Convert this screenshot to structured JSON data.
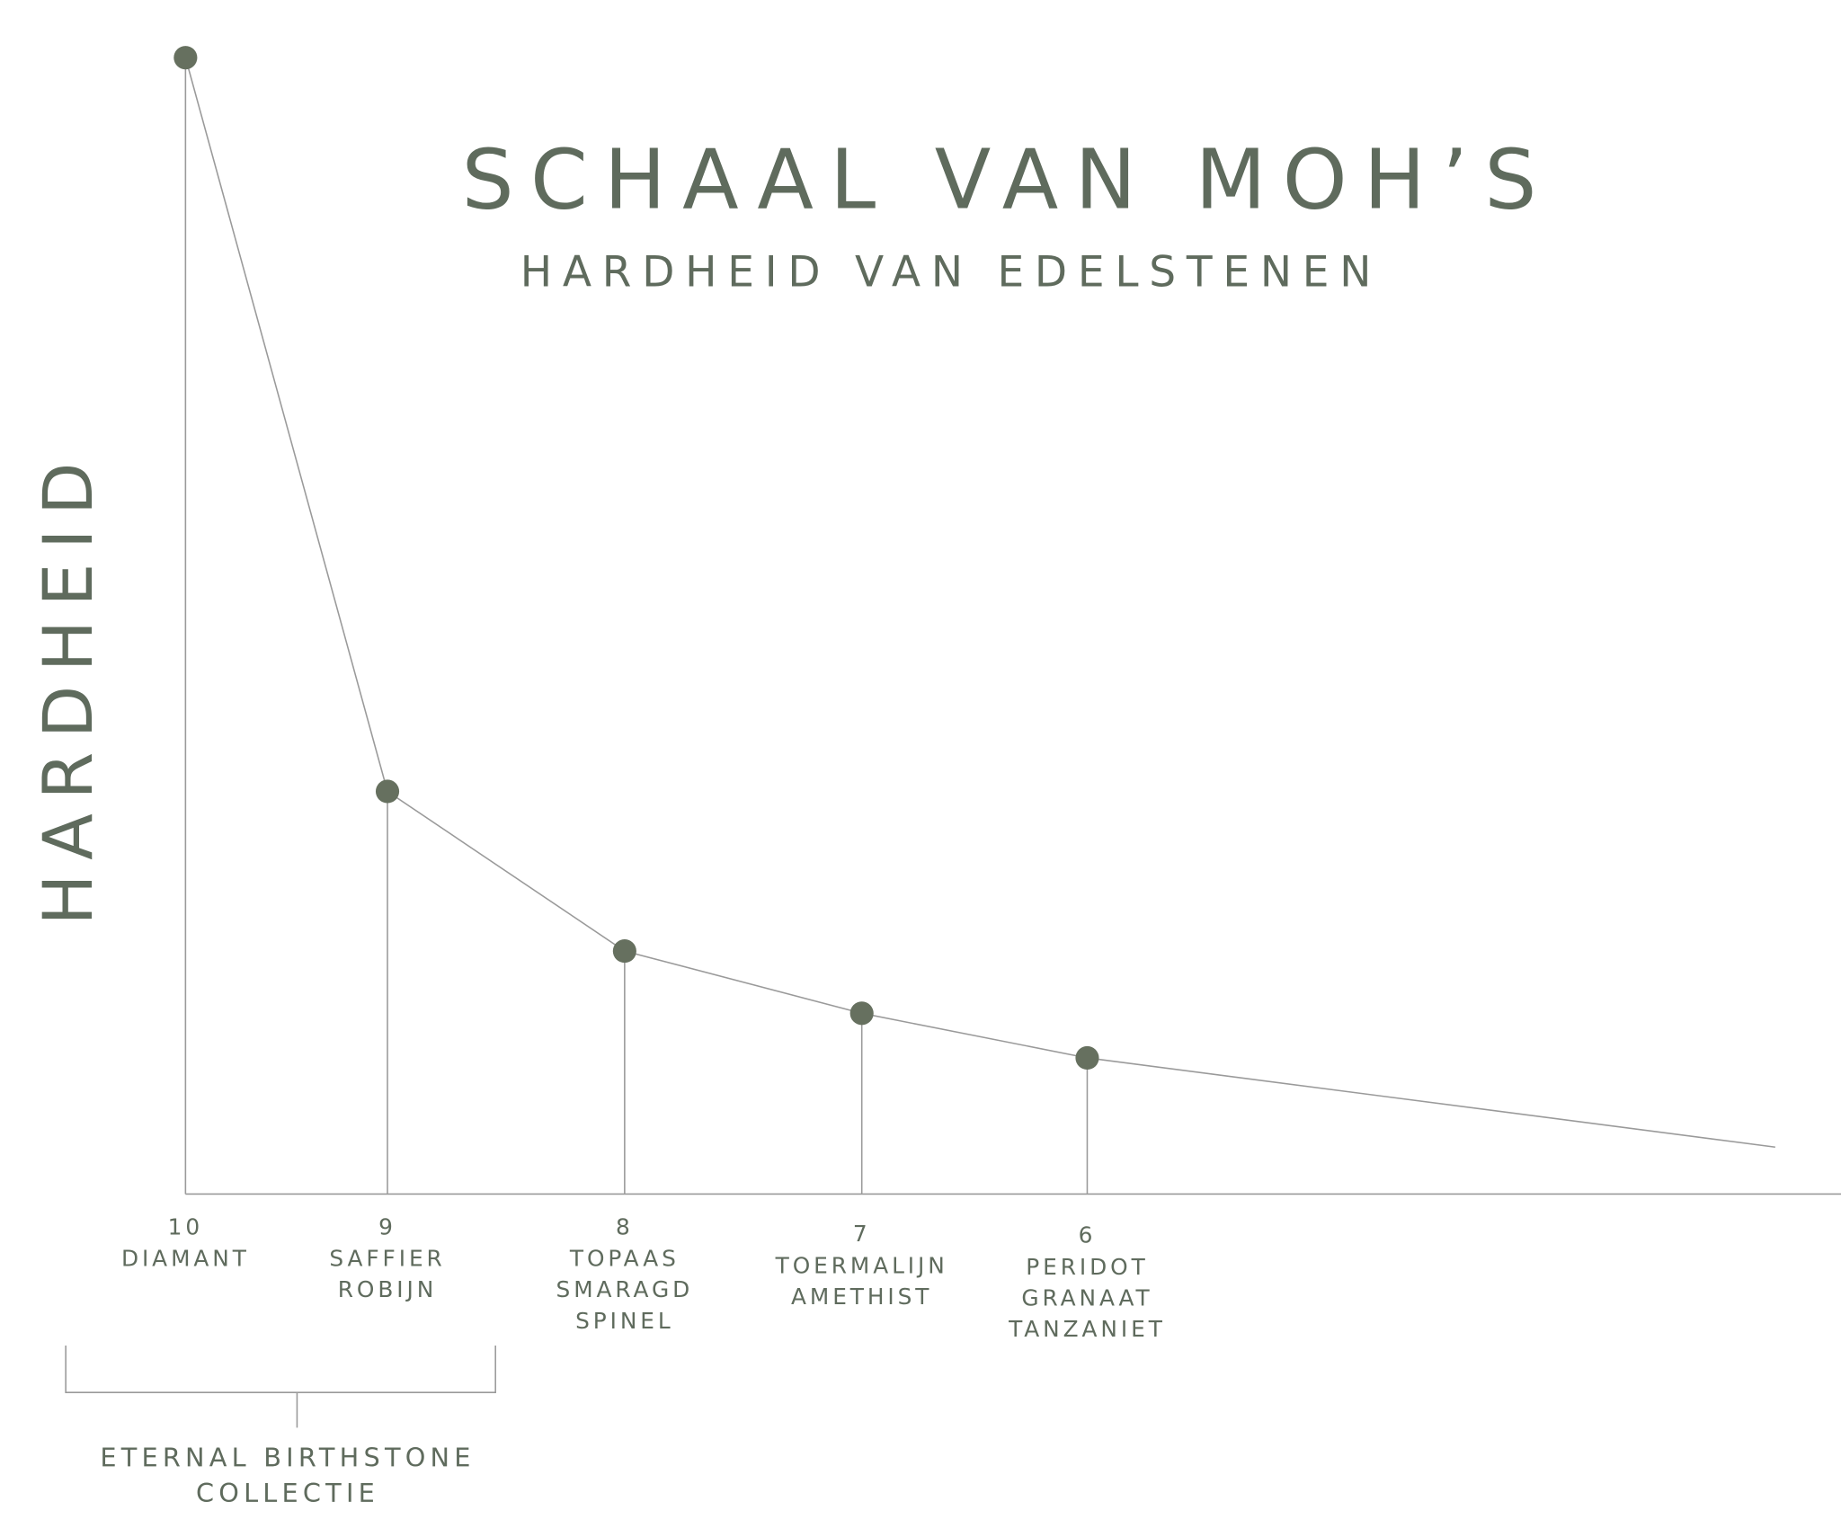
{
  "chart_data": {
    "type": "line",
    "title": "SCHAAL VAN MOH’S",
    "subtitle": "HARDHEID VAN EDELSTENEN",
    "y_label": "HARDHEID",
    "categories": [
      [
        "DIAMANT"
      ],
      [
        "SAFFIER",
        "ROBIJN"
      ],
      [
        "TOPAAS",
        "SMARAGD",
        "SPINEL"
      ],
      [
        "TOERMALIJN",
        "AMETHIST"
      ],
      [
        "PERIDOT",
        "GRANAAT",
        "TANZANIET"
      ]
    ],
    "values": [
      10,
      9,
      8,
      7,
      6
    ],
    "color": "#66705f",
    "annotation": [
      "ETERNAL BIRTHSTONE",
      "COLLECTIE"
    ]
  }
}
